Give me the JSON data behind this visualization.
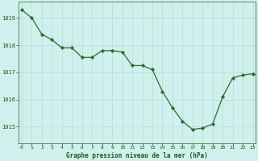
{
  "x": [
    0,
    1,
    2,
    3,
    4,
    5,
    6,
    7,
    8,
    9,
    10,
    11,
    12,
    13,
    14,
    15,
    16,
    17,
    18,
    19,
    20,
    21,
    22,
    23
  ],
  "y": [
    1019.3,
    1019.0,
    1018.4,
    1018.2,
    1017.9,
    1017.9,
    1017.55,
    1017.55,
    1017.8,
    1017.8,
    1017.75,
    1017.25,
    1017.25,
    1017.1,
    1016.3,
    1015.7,
    1015.2,
    1014.9,
    1014.95,
    1015.1,
    1016.1,
    1016.8,
    1016.9,
    1016.95
  ],
  "line_color": "#2d6a2d",
  "marker_color": "#2d6a2d",
  "bg_color": "#cff0ec",
  "grid_color": "#b8e0dc",
  "ylabel_ticks": [
    1015,
    1016,
    1017,
    1018,
    1019
  ],
  "xlabel": "Graphe pression niveau de la mer (hPa)",
  "xlabel_color": "#1a5c1a",
  "ylim": [
    1014.4,
    1019.6
  ],
  "xlim": [
    -0.3,
    23.3
  ],
  "tick_color": "#1a5c1a",
  "spine_color": "#5a8a5a"
}
